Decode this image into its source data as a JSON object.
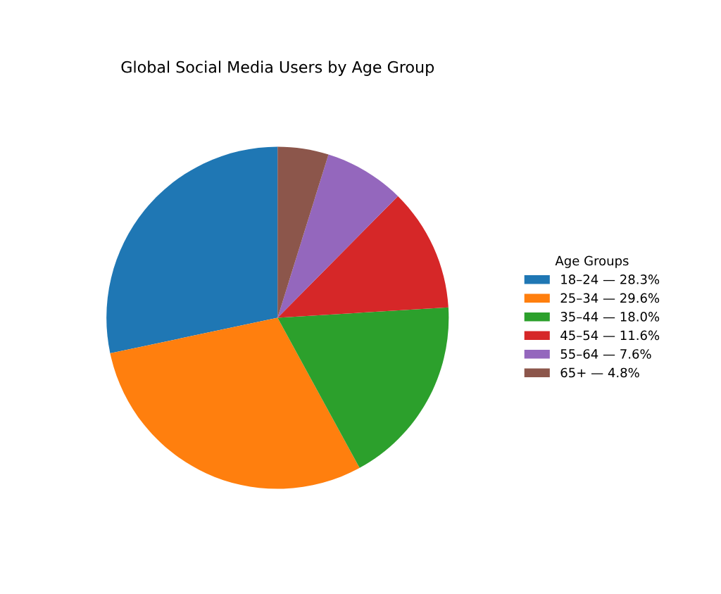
{
  "chart_data": {
    "type": "pie",
    "title": "Global Social Media Users by Age Group",
    "legend_title": "Age Groups",
    "legend": "right",
    "categories": [
      "18–24 — 28.3%",
      "25–34 — 29.6%",
      "35–44 — 18.0%",
      "45–54 — 11.6%",
      "55–64 — 7.6%",
      "65+ — 4.8%"
    ],
    "values": [
      28.3,
      29.6,
      18.0,
      11.6,
      7.6,
      4.8
    ],
    "colors": [
      "#1f77b4",
      "#ff7f0e",
      "#2ca02c",
      "#d62728",
      "#9467bd",
      "#8c564b"
    ]
  }
}
